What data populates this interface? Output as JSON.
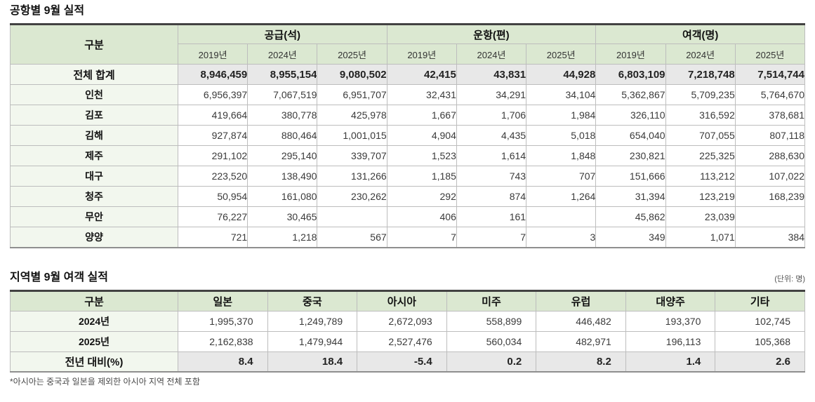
{
  "colors": {
    "header_green": "#dbe8d1",
    "row_label_green": "#f2f7ee",
    "highlight_gray": "#e8e8e8",
    "table_top_border": "#424242",
    "table_bottom_border": "#8f8f8f",
    "grid_line": "#bdbdbd"
  },
  "table1": {
    "title": "공항별 9월 실적",
    "corner_label": "구분",
    "groups": [
      {
        "label": "공급(석)",
        "years": [
          "2019년",
          "2024년",
          "2025년"
        ]
      },
      {
        "label": "운항(편)",
        "years": [
          "2019년",
          "2024년",
          "2025년"
        ]
      },
      {
        "label": "여객(명)",
        "years": [
          "2019년",
          "2024년",
          "2025년"
        ]
      }
    ],
    "total_row": {
      "label": "전체 합계",
      "values": [
        "8,946,459",
        "8,955,154",
        "9,080,502",
        "42,415",
        "43,831",
        "44,928",
        "6,803,109",
        "7,218,748",
        "7,514,744"
      ]
    },
    "rows": [
      {
        "label": "인천",
        "values": [
          "6,956,397",
          "7,067,519",
          "6,951,707",
          "32,431",
          "34,291",
          "34,104",
          "5,362,867",
          "5,709,235",
          "5,764,670"
        ]
      },
      {
        "label": "김포",
        "values": [
          "419,664",
          "380,778",
          "425,978",
          "1,667",
          "1,706",
          "1,984",
          "326,110",
          "316,592",
          "378,681"
        ]
      },
      {
        "label": "김해",
        "values": [
          "927,874",
          "880,464",
          "1,001,015",
          "4,904",
          "4,435",
          "5,018",
          "654,040",
          "707,055",
          "807,118"
        ]
      },
      {
        "label": "제주",
        "values": [
          "291,102",
          "295,140",
          "339,707",
          "1,523",
          "1,614",
          "1,848",
          "230,821",
          "225,325",
          "288,630"
        ]
      },
      {
        "label": "대구",
        "values": [
          "223,520",
          "138,490",
          "131,266",
          "1,185",
          "743",
          "707",
          "151,666",
          "113,212",
          "107,022"
        ]
      },
      {
        "label": "청주",
        "values": [
          "50,954",
          "161,080",
          "230,262",
          "292",
          "874",
          "1,264",
          "31,394",
          "123,219",
          "168,239"
        ]
      },
      {
        "label": "무안",
        "values": [
          "76,227",
          "30,465",
          "",
          "406",
          "161",
          "",
          "45,862",
          "23,039",
          ""
        ]
      },
      {
        "label": "양양",
        "values": [
          "721",
          "1,218",
          "567",
          "7",
          "7",
          "3",
          "349",
          "1,071",
          "384"
        ]
      }
    ]
  },
  "table2": {
    "title": "지역별 9월 여객 실적",
    "unit_note": "(단위: 명)",
    "columns": [
      "구분",
      "일본",
      "중국",
      "아시아",
      "미주",
      "유럽",
      "대양주",
      "기타"
    ],
    "rows": [
      {
        "label": "2024년",
        "highlight": false,
        "values": [
          "1,995,370",
          "1,249,789",
          "2,672,093",
          "558,899",
          "446,482",
          "193,370",
          "102,745"
        ]
      },
      {
        "label": "2025년",
        "highlight": false,
        "values": [
          "2,162,838",
          "1,479,944",
          "2,527,476",
          "560,034",
          "482,971",
          "196,113",
          "105,368"
        ]
      },
      {
        "label": "전년 대비(%)",
        "highlight": true,
        "values": [
          "8.4",
          "18.4",
          "-5.4",
          "0.2",
          "8.2",
          "1.4",
          "2.6"
        ]
      }
    ],
    "footnote": "*아시아는 중국과 일본을 제외한 아시아 지역 전체 포함"
  }
}
